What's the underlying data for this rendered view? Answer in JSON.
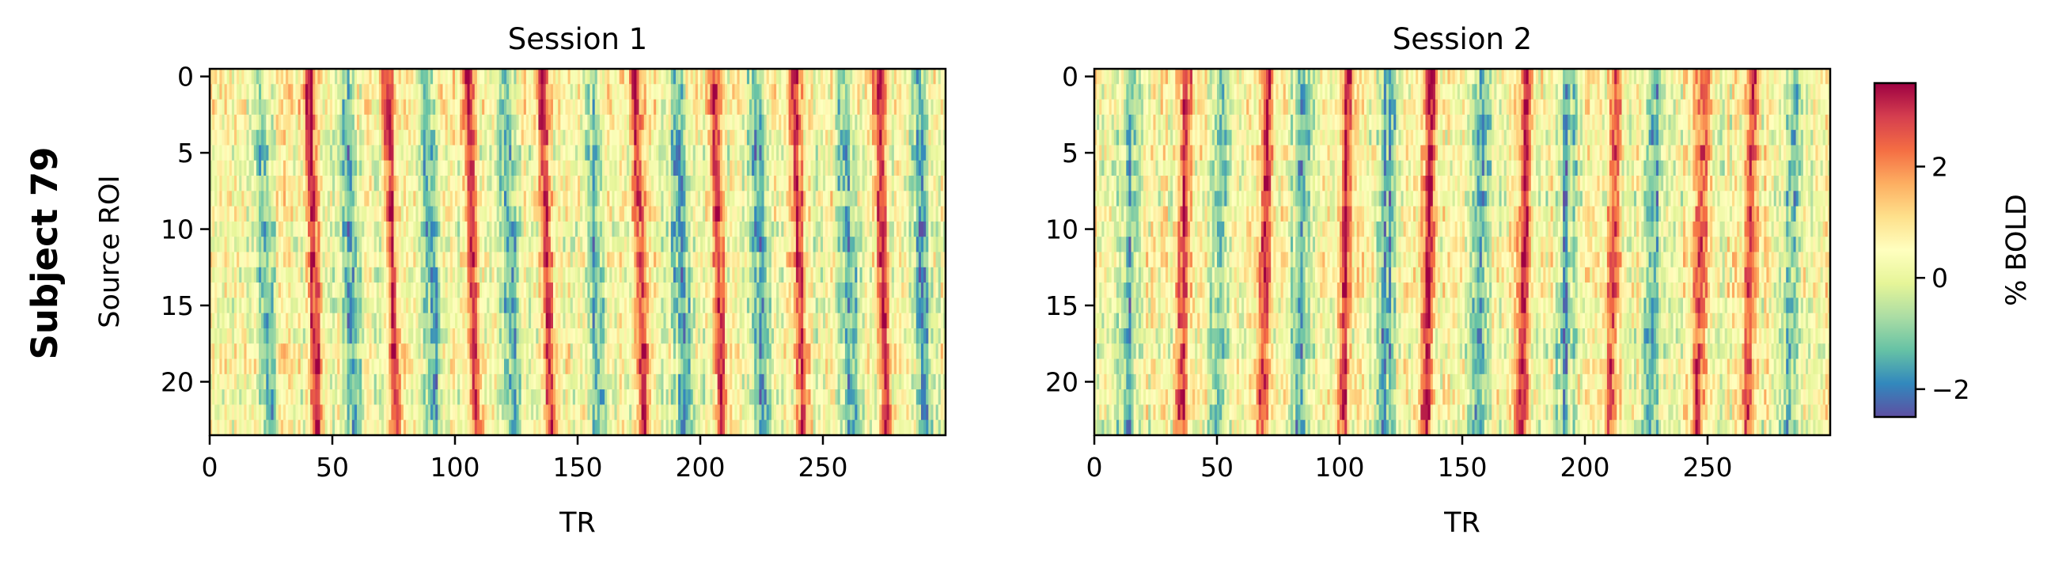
{
  "figure": {
    "row_label": "Subject 79"
  },
  "chart_data": [
    {
      "type": "heatmap",
      "title": "Session 1",
      "xlabel": "TR",
      "ylabel": "Source ROI",
      "xlim": [
        0,
        300
      ],
      "ylim": [
        24,
        0
      ],
      "n_rows": 24,
      "n_cols": 300,
      "xticks": [
        0,
        50,
        100,
        150,
        200,
        250
      ],
      "yticks": [
        0,
        5,
        10,
        15,
        20
      ],
      "colormap": "Spectral_r",
      "peak_columns": [
        40,
        72,
        105,
        135,
        173,
        205,
        238,
        272
      ],
      "trough_columns": [
        20,
        55,
        88,
        120,
        155,
        190,
        222,
        258,
        288
      ],
      "drift_tr_per_roi": 0.15
    },
    {
      "type": "heatmap",
      "title": "Session 2",
      "xlabel": "TR",
      "ylabel": "",
      "xlim": [
        0,
        300
      ],
      "ylim": [
        24,
        0
      ],
      "n_rows": 24,
      "n_cols": 300,
      "xticks": [
        0,
        50,
        100,
        150,
        200,
        250
      ],
      "yticks": [
        0,
        5,
        10,
        15,
        20
      ],
      "colormap": "Spectral_r",
      "peak_columns": [
        37,
        70,
        103,
        137,
        176,
        212,
        248,
        268
      ],
      "trough_columns": [
        15,
        52,
        85,
        120,
        158,
        193,
        228,
        285
      ],
      "drift_tr_per_roi": -0.1
    }
  ],
  "colorbar": {
    "label": "% BOLD",
    "vmin": -2.5,
    "vmax": 3.5,
    "ticks": [
      -2,
      0,
      2
    ],
    "tick_labels": [
      "−2",
      "0",
      "2"
    ],
    "colors": [
      "#5e4fa2",
      "#3288bd",
      "#66c2a5",
      "#abdda4",
      "#e6f598",
      "#ffffbf",
      "#fee08b",
      "#fdae61",
      "#f46d43",
      "#d53e4f",
      "#9e0142"
    ]
  }
}
